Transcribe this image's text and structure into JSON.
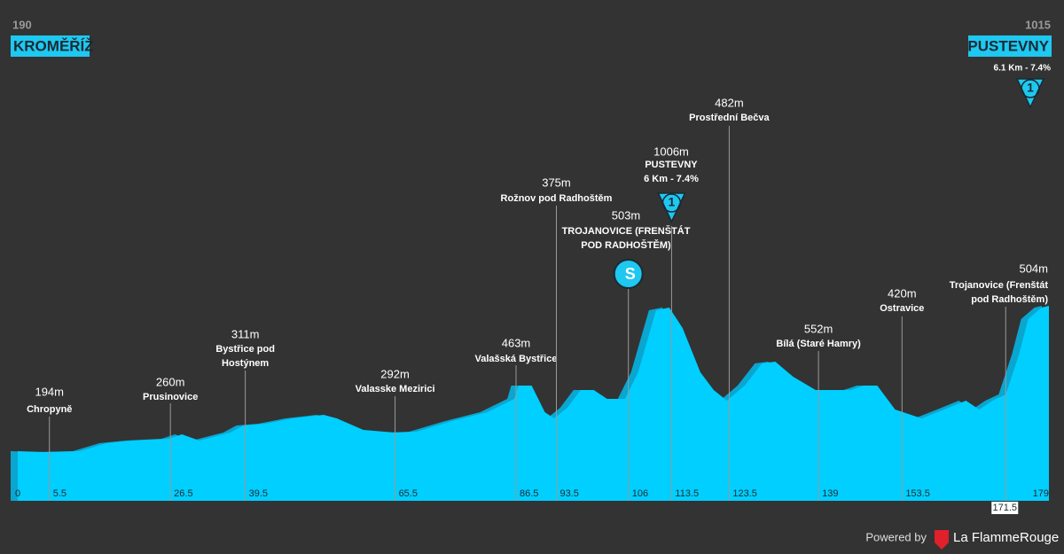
{
  "chart_data": {
    "type": "area",
    "color": "#00cfff",
    "start": {
      "elevation": 190,
      "name": "KROMĚŘÍŽ"
    },
    "finish": {
      "elevation": 1015,
      "name": "PUSTEVNY",
      "climb": "6.1 Km - 7.4%",
      "marker": {
        "type": "climb",
        "label": "1"
      }
    },
    "xlim": [
      0,
      179
    ],
    "ylim": [
      0,
      1100
    ],
    "x": [
      0,
      4.6,
      10.8,
      15.4,
      20,
      26.2,
      28.5,
      31.5,
      36.9,
      39.2,
      43,
      47.7,
      53.1,
      55.4,
      60,
      65.4,
      69.2,
      75.4,
      81.5,
      86.2,
      86.9,
      89.2,
      91.5,
      93.1,
      95.4,
      97.7,
      100,
      102.3,
      105.4,
      107.7,
      110.8,
      113.1,
      115.4,
      118.5,
      120.8,
      123.1,
      126.2,
      129.2,
      131.5,
      134.6,
      138.5,
      144.6,
      146.9,
      149.2,
      152.3,
      156.9,
      160.8,
      164.6,
      166.9,
      169.2,
      171.5,
      173.8,
      175.4,
      177.7,
      179
    ],
    "values": [
      195,
      190,
      195,
      240,
      255,
      265,
      290,
      255,
      300,
      340,
      350,
      380,
      400,
      380,
      315,
      300,
      305,
      365,
      415,
      490,
      565,
      565,
      415,
      380,
      440,
      540,
      540,
      490,
      490,
      640,
      990,
      1005,
      890,
      640,
      540,
      480,
      565,
      690,
      700,
      615,
      540,
      540,
      565,
      565,
      430,
      380,
      430,
      480,
      430,
      480,
      515,
      740,
      940,
      1005,
      1015
    ],
    "waypoints": [
      {
        "km": 5.5,
        "elevation": 194,
        "elevation_label": "194m",
        "name": [
          "Chropyně"
        ]
      },
      {
        "km": 26.5,
        "elevation": 260,
        "elevation_label": "260m",
        "name": [
          "Prusinovice"
        ]
      },
      {
        "km": 39.5,
        "elevation": 311,
        "elevation_label": "311m",
        "name": [
          "Bystřice pod",
          "Hostýnem"
        ]
      },
      {
        "km": 65.5,
        "elevation": 292,
        "elevation_label": "292m",
        "name": [
          "Valasske Mezirici"
        ]
      },
      {
        "km": 86.5,
        "elevation": 463,
        "elevation_label": "463m",
        "name": [
          "Valašská Bystřice"
        ]
      },
      {
        "km": 93.5,
        "elevation": 375,
        "elevation_label": "375m",
        "name": [
          "Rožnov pod Radhoštěm"
        ]
      },
      {
        "km": 106,
        "elevation": 503,
        "elevation_label": "503m",
        "name": [
          "TROJANOVICE (FRENŠTÁT",
          "POD RADHOŠTĚM)"
        ],
        "marker": {
          "type": "sprint",
          "label": "S"
        }
      },
      {
        "km": 113.5,
        "elevation": 1006,
        "elevation_label": "1006m",
        "name": [
          "PUSTEVNY",
          "6 Km - 7.4%"
        ],
        "marker": {
          "type": "climb",
          "label": "1"
        }
      },
      {
        "km": 123.5,
        "elevation": 482,
        "elevation_label": "482m",
        "name": [
          "Prostřední Bečva"
        ]
      },
      {
        "km": 139,
        "elevation": 552,
        "elevation_label": "552m",
        "name": [
          "Bílá (Staré Hamry)"
        ]
      },
      {
        "km": 153.5,
        "elevation": 420,
        "elevation_label": "420m",
        "name": [
          "Ostravice"
        ]
      },
      {
        "km": 171.5,
        "elevation": 504,
        "elevation_label": "504m",
        "name": [
          "Trojanovice (Frenštát",
          "pod Radhoštěm)"
        ]
      }
    ],
    "footer": {
      "powered": "Powered by",
      "brand": "La FlammeRouge"
    }
  }
}
